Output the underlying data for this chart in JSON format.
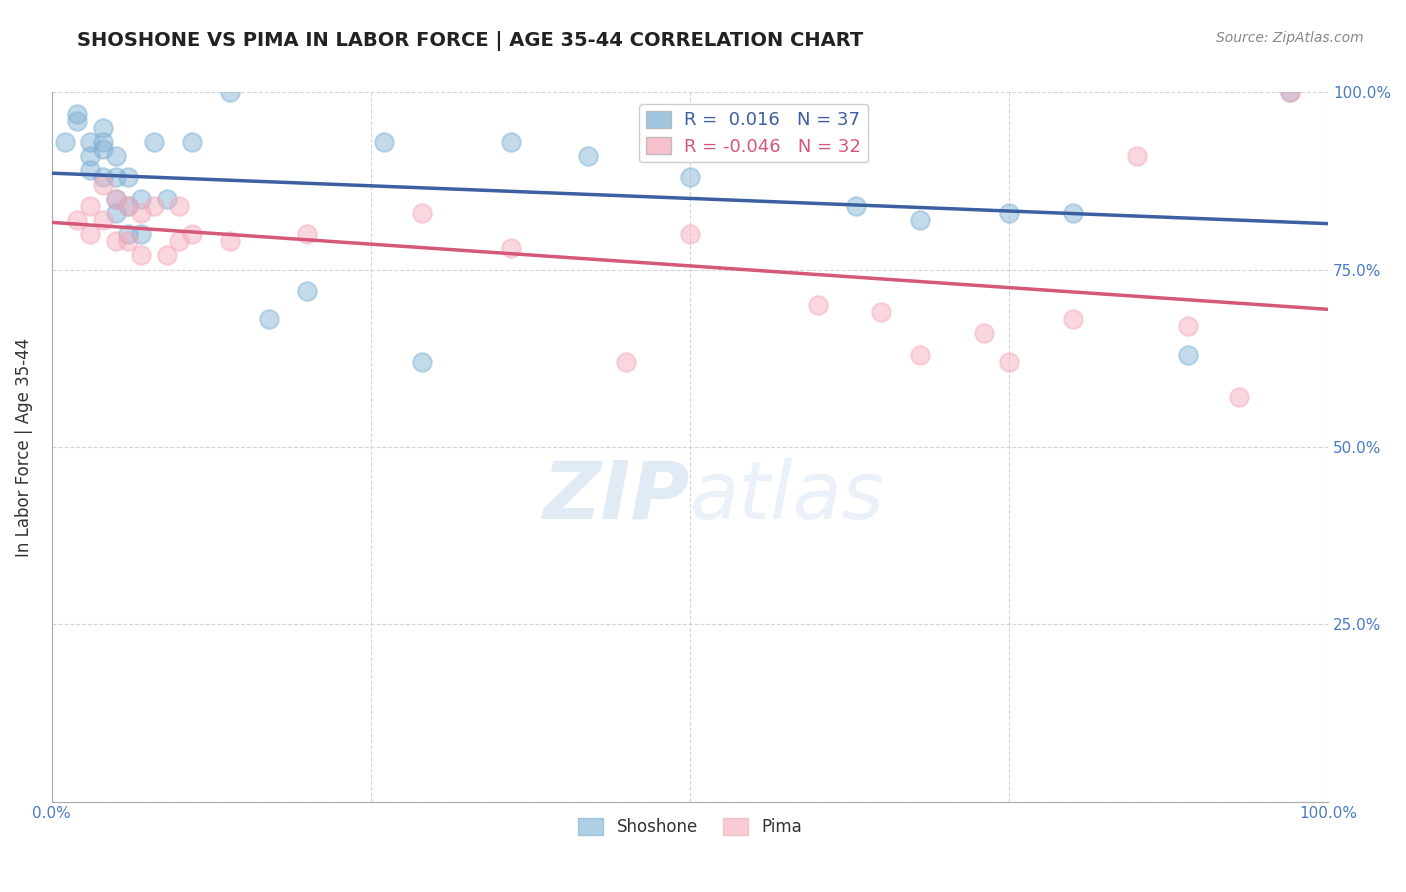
{
  "title": "SHOSHONE VS PIMA IN LABOR FORCE | AGE 35-44 CORRELATION CHART",
  "source_text": "Source: ZipAtlas.com",
  "ylabel": "In Labor Force | Age 35-44",
  "xlim": [
    0.0,
    1.0
  ],
  "ylim": [
    0.0,
    1.0
  ],
  "x_ticks": [
    0.0,
    0.25,
    0.5,
    0.75,
    1.0
  ],
  "y_ticks": [
    0.0,
    0.25,
    0.5,
    0.75,
    1.0
  ],
  "shoshone_r": 0.016,
  "shoshone_n": 37,
  "pima_r": -0.046,
  "pima_n": 32,
  "shoshone_color": "#7BAFD4",
  "pima_color": "#F4A8B8",
  "shoshone_line_color": "#3B5FA0",
  "pima_line_color": "#D45878",
  "background_color": "#FFFFFF",
  "grid_color": "#CCCCCC",
  "watermark_color": "#C5D8EC",
  "shoshone_x": [
    0.01,
    0.02,
    0.02,
    0.03,
    0.03,
    0.03,
    0.04,
    0.04,
    0.04,
    0.04,
    0.05,
    0.05,
    0.05,
    0.05,
    0.06,
    0.06,
    0.06,
    0.07,
    0.07,
    0.08,
    0.09,
    0.11,
    0.14,
    0.17,
    0.2,
    0.26,
    0.29,
    0.36,
    0.42,
    0.5,
    0.6,
    0.63,
    0.68,
    0.75,
    0.8,
    0.89,
    0.97
  ],
  "shoshone_y": [
    0.93,
    0.97,
    0.96,
    0.93,
    0.91,
    0.89,
    0.95,
    0.93,
    0.92,
    0.88,
    0.91,
    0.88,
    0.85,
    0.83,
    0.88,
    0.84,
    0.8,
    0.85,
    0.8,
    0.93,
    0.85,
    0.93,
    1.0,
    0.68,
    0.72,
    0.93,
    0.62,
    0.93,
    0.91,
    0.88,
    0.92,
    0.84,
    0.82,
    0.83,
    0.83,
    0.63,
    1.0
  ],
  "pima_x": [
    0.02,
    0.03,
    0.03,
    0.04,
    0.04,
    0.05,
    0.05,
    0.06,
    0.06,
    0.07,
    0.07,
    0.08,
    0.09,
    0.1,
    0.1,
    0.11,
    0.14,
    0.2,
    0.29,
    0.36,
    0.45,
    0.5,
    0.6,
    0.65,
    0.68,
    0.73,
    0.75,
    0.8,
    0.85,
    0.89,
    0.93,
    0.97
  ],
  "pima_y": [
    0.82,
    0.84,
    0.8,
    0.87,
    0.82,
    0.85,
    0.79,
    0.84,
    0.79,
    0.83,
    0.77,
    0.84,
    0.77,
    0.84,
    0.79,
    0.8,
    0.79,
    0.8,
    0.83,
    0.78,
    0.62,
    0.8,
    0.7,
    0.69,
    0.63,
    0.66,
    0.62,
    0.68,
    0.91,
    0.67,
    0.57,
    1.0
  ]
}
